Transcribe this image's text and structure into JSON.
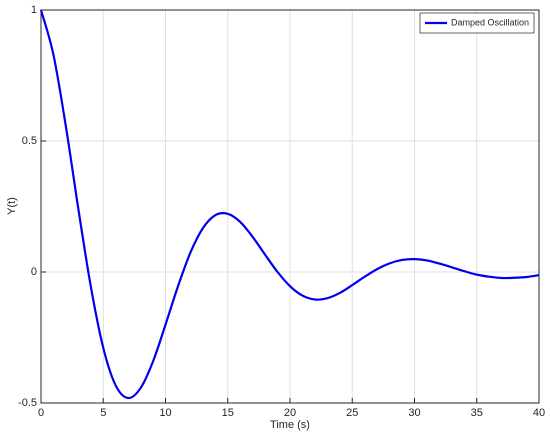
{
  "chart_data": {
    "type": "line",
    "xlabel": "Time (s)",
    "ylabel": "Y(t)",
    "x": [
      0,
      1,
      2,
      3,
      4,
      5,
      6,
      7,
      8,
      9,
      10,
      11,
      12,
      13,
      14,
      15,
      16,
      17,
      18,
      19,
      20,
      21,
      22,
      23,
      24,
      25,
      26,
      27,
      28,
      29,
      30,
      31,
      32,
      33,
      34,
      35,
      36,
      37,
      38,
      39,
      40
    ],
    "series": [
      {
        "name": "Damped Oscillation",
        "color": "#0000ee",
        "values": [
          1,
          0.829,
          0.555,
          0.241,
          -0.055,
          -0.289,
          -0.433,
          -0.481,
          -0.443,
          -0.341,
          -0.201,
          -0.055,
          0.074,
          0.167,
          0.217,
          0.222,
          0.191,
          0.134,
          0.066,
          0.0,
          -0.054,
          -0.09,
          -0.105,
          -0.1,
          -0.08,
          -0.05,
          -0.018,
          0.011,
          0.033,
          0.046,
          0.049,
          0.044,
          0.032,
          0.018,
          0.003,
          -0.01,
          -0.018,
          -0.023,
          -0.022,
          -0.019,
          -0.012
        ]
      }
    ],
    "xlim": [
      0,
      40
    ],
    "xticks": [
      0,
      5,
      10,
      15,
      20,
      25,
      30,
      35,
      40
    ],
    "ylim": [
      -0.5,
      1
    ],
    "yticks": [
      -0.5,
      0,
      0.5,
      1
    ],
    "grid": true,
    "legend": "upper right"
  }
}
